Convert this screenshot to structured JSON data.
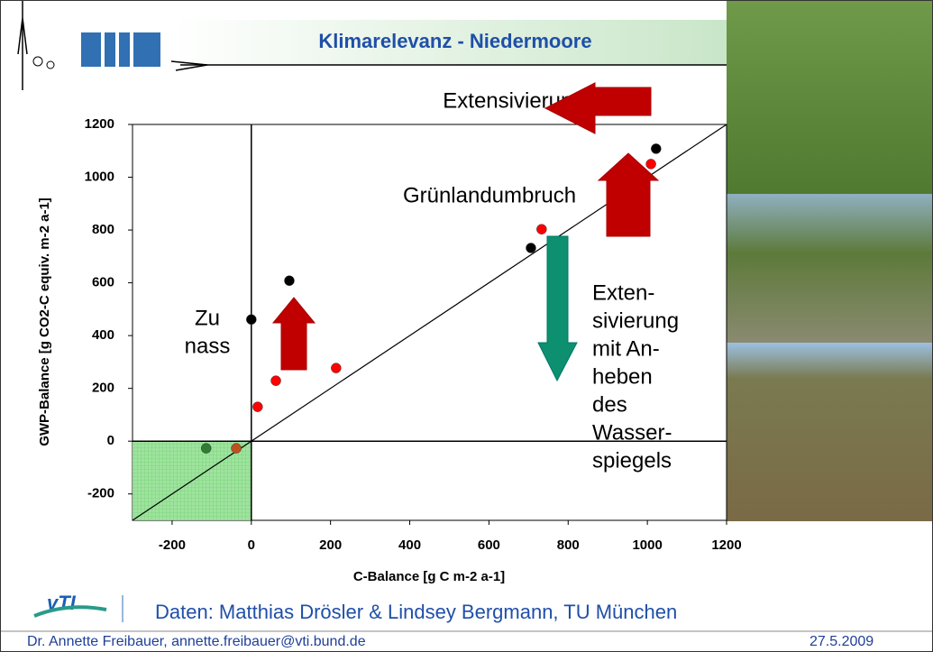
{
  "chart_data": {
    "type": "scatter",
    "title": "Klimarelevanz - Niedermoore",
    "x_label": "C-Balance [g C m-2 a-1]",
    "y_label": "GWP-Balance [g CO2-C equiv. m-2 a-1]",
    "xlim": [
      -300,
      1200
    ],
    "ylim": [
      -300,
      1200
    ],
    "xticks": [
      -200,
      0,
      200,
      400,
      600,
      800,
      1000,
      1200
    ],
    "yticks": [
      -200,
      0,
      200,
      400,
      600,
      800,
      1000,
      1200
    ],
    "series": [
      {
        "color": "#000000",
        "x": [
          0,
          96,
          706,
          1022
        ],
        "values": [
          461,
          608,
          732,
          1108
        ]
      },
      {
        "color": "#ff0000",
        "x": [
          16,
          62,
          214,
          733,
          1009
        ],
        "values": [
          130,
          229,
          277,
          803,
          1050
        ]
      },
      {
        "color": "#2e7d32",
        "x": [
          -114
        ],
        "values": [
          -27
        ]
      },
      {
        "color": "#c0501e",
        "x": [
          -38
        ],
        "values": [
          -27
        ]
      }
    ],
    "annotations": [
      {
        "lines": [
          "Extensivierung"
        ]
      },
      {
        "lines": [
          "Grünlandumbruch"
        ]
      },
      {
        "lines": [
          "Zu",
          "nass"
        ]
      },
      {
        "lines": [
          "Exten-",
          "sivierung",
          "mit An-",
          "heben",
          "des",
          "Wasser-",
          "spiegels"
        ]
      }
    ]
  },
  "footer": {
    "source": "Daten: Matthias Drösler & Lindsey Bergmann, TU München",
    "author": "Dr. Annette Freibauer, annette.freibauer@vti.bund.de",
    "date": "27.5.2009",
    "logo": "vTI"
  }
}
